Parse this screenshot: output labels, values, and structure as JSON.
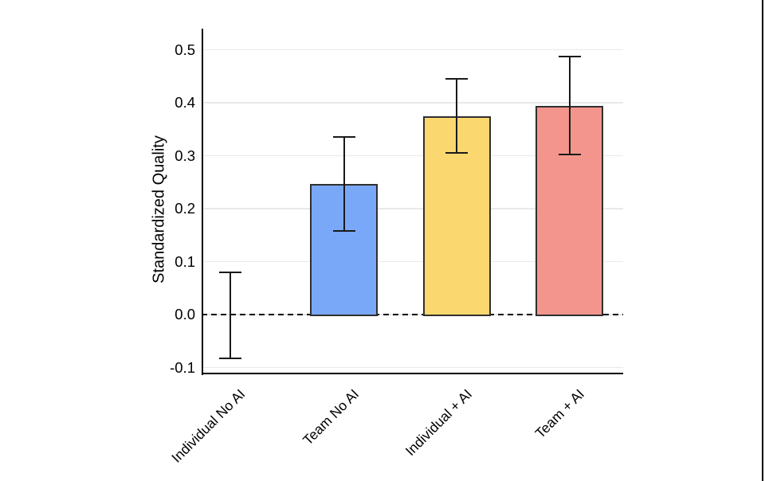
{
  "figure": {
    "background_color": "#ffffff",
    "right_edge_bar_color": "#000000"
  },
  "chart_data": {
    "type": "bar",
    "title": "",
    "xlabel": "",
    "ylabel": "Standardized Quality",
    "categories": [
      "Individual No AI",
      "Team No AI",
      "Individual + AI",
      "Team + AI"
    ],
    "series": [
      {
        "name": "Standardized Quality",
        "values": [
          0.0,
          0.247,
          0.374,
          0.394
        ],
        "ci_low": [
          -0.083,
          0.158,
          0.305,
          0.303
        ],
        "ci_high": [
          0.08,
          0.336,
          0.445,
          0.487
        ]
      }
    ],
    "bar_colors": [
      "#ffffff",
      "#7AA8F9",
      "#FBD76F",
      "#F3958C"
    ],
    "bar_border_color": "#2f2f2f",
    "errorbar_color": "#1a1a1a",
    "ylim": [
      -0.113,
      0.545
    ],
    "yticks": [
      0.5,
      0.4,
      0.3,
      0.2,
      0.1,
      0.0,
      -0.1
    ],
    "ytick_labels": [
      "0.5",
      "0.4",
      "0.3",
      "0.2",
      "0.1",
      "0.0",
      "-0.1"
    ],
    "grid": true,
    "gridline_color": "#e9e9e9",
    "zero_line": {
      "value": 0.0,
      "style": "dashed",
      "color": "#000000"
    },
    "legend": "none"
  }
}
